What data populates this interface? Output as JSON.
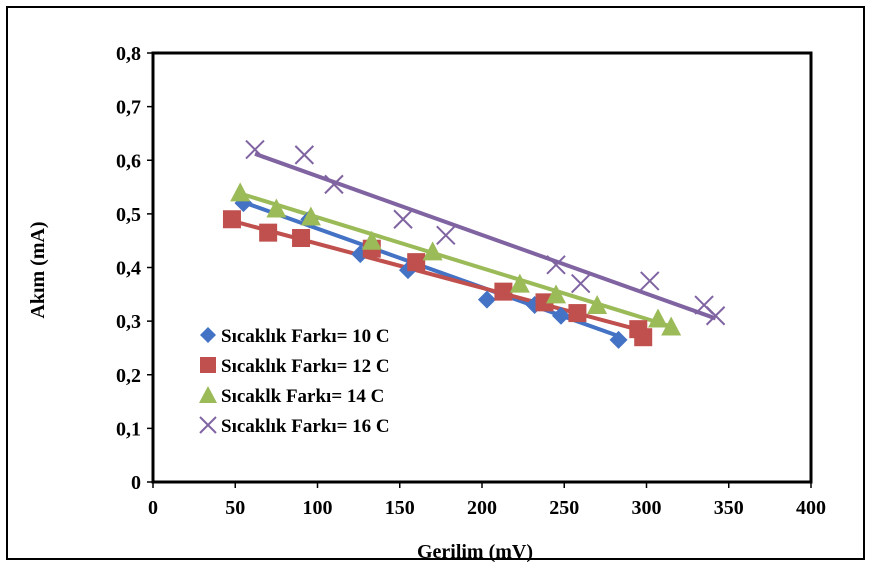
{
  "chart_data": {
    "type": "scatter",
    "title": "",
    "xlabel": "Gerilim (mV)",
    "ylabel": "Akım (mA)",
    "xlim": [
      0,
      400
    ],
    "ylim": [
      0,
      0.8
    ],
    "x_ticks": [
      0,
      50,
      100,
      150,
      200,
      250,
      300,
      350,
      400
    ],
    "x_tick_labels": [
      "0",
      "50",
      "100",
      "150",
      "200",
      "250",
      "300",
      "350",
      "400"
    ],
    "y_ticks": [
      0,
      0.1,
      0.2,
      0.3,
      0.4,
      0.5,
      0.6,
      0.7,
      0.8
    ],
    "y_tick_labels": [
      "0",
      "0,1",
      "0,2",
      "0,3",
      "0,4",
      "0,5",
      "0,6",
      "0,7",
      "0,8"
    ],
    "grid": false,
    "legend_position": "bottom-left",
    "trendlines": true,
    "series": [
      {
        "name": "Sıcaklık Farkı= 10 C",
        "marker": "diamond",
        "color": "#4472C4",
        "points": [
          {
            "x": 55,
            "y": 0.52
          },
          {
            "x": 95,
            "y": 0.49
          },
          {
            "x": 126,
            "y": 0.425
          },
          {
            "x": 155,
            "y": 0.395
          },
          {
            "x": 203,
            "y": 0.34
          },
          {
            "x": 232,
            "y": 0.33
          },
          {
            "x": 248,
            "y": 0.31
          },
          {
            "x": 283,
            "y": 0.265
          }
        ],
        "trendline": {
          "x": [
            52,
            285
          ],
          "y": [
            0.525,
            0.27
          ]
        }
      },
      {
        "name": "Sıcaklık Farkı= 12 C",
        "marker": "square",
        "color": "#C0504D",
        "points": [
          {
            "x": 48,
            "y": 0.49
          },
          {
            "x": 70,
            "y": 0.465
          },
          {
            "x": 90,
            "y": 0.455
          },
          {
            "x": 133,
            "y": 0.435
          },
          {
            "x": 160,
            "y": 0.41
          },
          {
            "x": 213,
            "y": 0.355
          },
          {
            "x": 238,
            "y": 0.335
          },
          {
            "x": 258,
            "y": 0.315
          },
          {
            "x": 295,
            "y": 0.285
          },
          {
            "x": 298,
            "y": 0.27
          }
        ],
        "trendline": {
          "x": [
            48,
            300
          ],
          "y": [
            0.487,
            0.28
          ]
        }
      },
      {
        "name": "Sıcaklk Farkı= 14 C",
        "marker": "triangle",
        "color": "#9BBB59",
        "points": [
          {
            "x": 53,
            "y": 0.54
          },
          {
            "x": 75,
            "y": 0.51
          },
          {
            "x": 96,
            "y": 0.495
          },
          {
            "x": 133,
            "y": 0.45
          },
          {
            "x": 170,
            "y": 0.43
          },
          {
            "x": 223,
            "y": 0.37
          },
          {
            "x": 245,
            "y": 0.35
          },
          {
            "x": 270,
            "y": 0.33
          },
          {
            "x": 307,
            "y": 0.305
          },
          {
            "x": 315,
            "y": 0.29
          }
        ],
        "trendline": {
          "x": [
            53,
            315
          ],
          "y": [
            0.538,
            0.29
          ]
        }
      },
      {
        "name": "Sıcaklık Farkı= 16 C",
        "marker": "x",
        "color": "#8064A2",
        "points": [
          {
            "x": 62,
            "y": 0.62
          },
          {
            "x": 92,
            "y": 0.61
          },
          {
            "x": 110,
            "y": 0.555
          },
          {
            "x": 152,
            "y": 0.49
          },
          {
            "x": 178,
            "y": 0.46
          },
          {
            "x": 245,
            "y": 0.405
          },
          {
            "x": 260,
            "y": 0.37
          },
          {
            "x": 302,
            "y": 0.375
          },
          {
            "x": 335,
            "y": 0.33
          },
          {
            "x": 342,
            "y": 0.31
          }
        ],
        "trendline": {
          "x": [
            62,
            342
          ],
          "y": [
            0.612,
            0.305
          ]
        }
      }
    ]
  }
}
